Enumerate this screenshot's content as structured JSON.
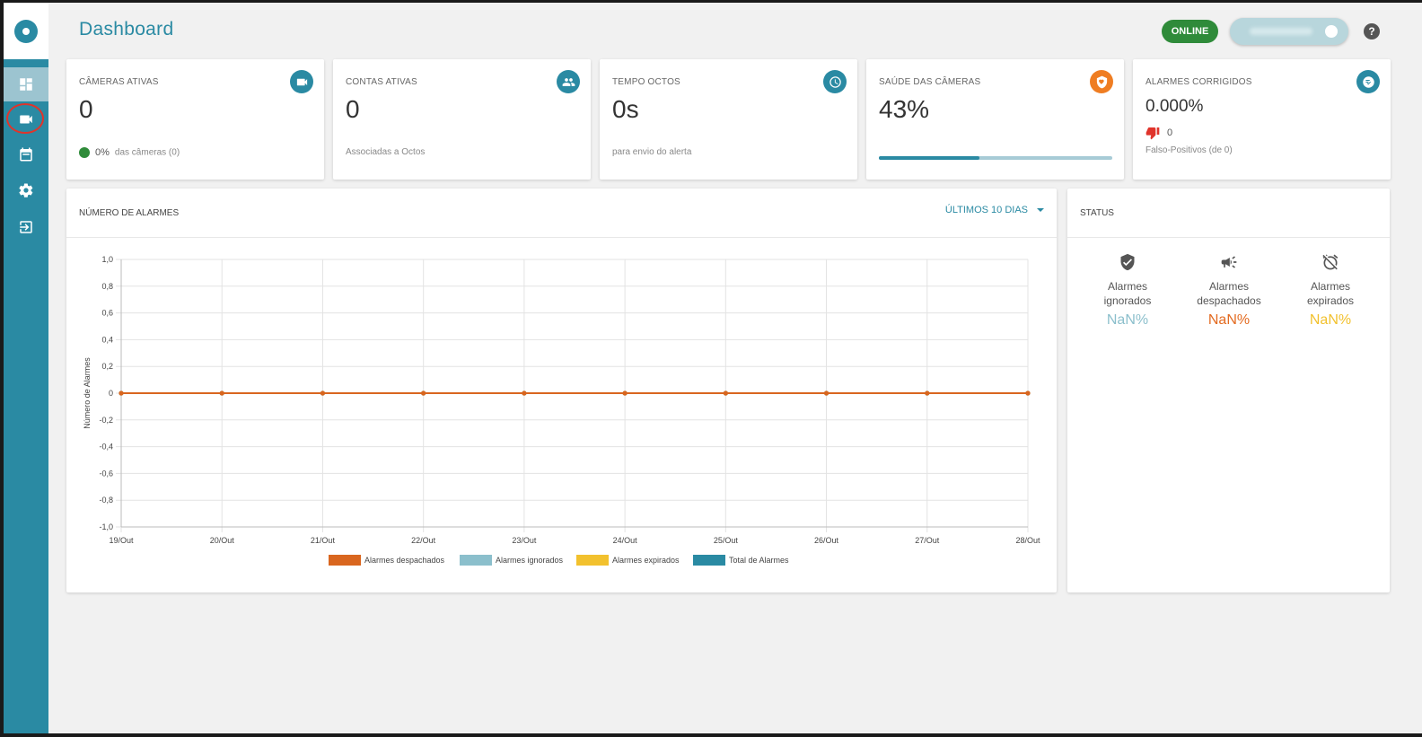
{
  "header": {
    "title": "Dashboard",
    "status_badge": "ONLINE",
    "help_label": "?"
  },
  "sidebar": {
    "items": [
      {
        "name": "dashboard",
        "icon": "dashboard-icon"
      },
      {
        "name": "cameras",
        "icon": "video-camera-icon"
      },
      {
        "name": "calendar",
        "icon": "calendar-icon"
      },
      {
        "name": "settings",
        "icon": "gear-icon"
      },
      {
        "name": "logout",
        "icon": "exit-icon"
      }
    ]
  },
  "cards": {
    "cameras": {
      "label": "CÂMERAS ATIVAS",
      "value": "0",
      "pct": "0%",
      "sub": "das câmeras (0)"
    },
    "accounts": {
      "label": "CONTAS ATIVAS",
      "value": "0",
      "sub": "Associadas a Octos"
    },
    "time": {
      "label": "TEMPO OCTOS",
      "value": "0s",
      "sub": "para envio do alerta"
    },
    "health": {
      "label": "SAÚDE DAS CÂMERAS",
      "value": "43%",
      "progress": 0.43
    },
    "fixed_alarms": {
      "label": "ALARMES CORRIGIDOS",
      "value": "0.000%",
      "thumbs_count": "0",
      "sub": "Falso-Positivos (de  0)"
    }
  },
  "alarms_panel": {
    "title": "NÚMERO DE ALARMES",
    "range": "ÚLTIMOS 10 DIAS"
  },
  "status_panel": {
    "title": "STATUS",
    "items": [
      {
        "label_line1": "Alarmes",
        "label_line2": "ignorados",
        "value": "NaN%",
        "color": "#8bbfcc"
      },
      {
        "label_line1": "Alarmes",
        "label_line2": "despachados",
        "value": "NaN%",
        "color": "#e36b21"
      },
      {
        "label_line1": "Alarmes",
        "label_line2": "expirados",
        "value": "NaN%",
        "color": "#f2c12e"
      }
    ]
  },
  "chart_data": {
    "type": "line",
    "title": "",
    "ylabel": "Número de Alarmes",
    "xlabel": "",
    "categories": [
      "19/Out",
      "20/Out",
      "21/Out",
      "22/Out",
      "23/Out",
      "24/Out",
      "25/Out",
      "26/Out",
      "27/Out",
      "28/Out"
    ],
    "ylim": [
      -1.0,
      1.0
    ],
    "yticks": [
      "1,0",
      "0,8",
      "0,6",
      "0,4",
      "0,2",
      "0",
      "-0,2",
      "-0,4",
      "-0,6",
      "-0,8",
      "-1,0"
    ],
    "series": [
      {
        "name": "Alarmes despachados",
        "color": "#d9661f",
        "values": [
          0,
          0,
          0,
          0,
          0,
          0,
          0,
          0,
          0,
          0
        ]
      },
      {
        "name": "Alarmes ignorados",
        "color": "#8bbfcc",
        "values": [
          0,
          0,
          0,
          0,
          0,
          0,
          0,
          0,
          0,
          0
        ]
      },
      {
        "name": "Alarmes expirados",
        "color": "#f2c12e",
        "values": [
          0,
          0,
          0,
          0,
          0,
          0,
          0,
          0,
          0,
          0
        ]
      },
      {
        "name": "Total de Alarmes",
        "color": "#2a8aa3",
        "values": [
          0,
          0,
          0,
          0,
          0,
          0,
          0,
          0,
          0,
          0
        ]
      }
    ]
  }
}
